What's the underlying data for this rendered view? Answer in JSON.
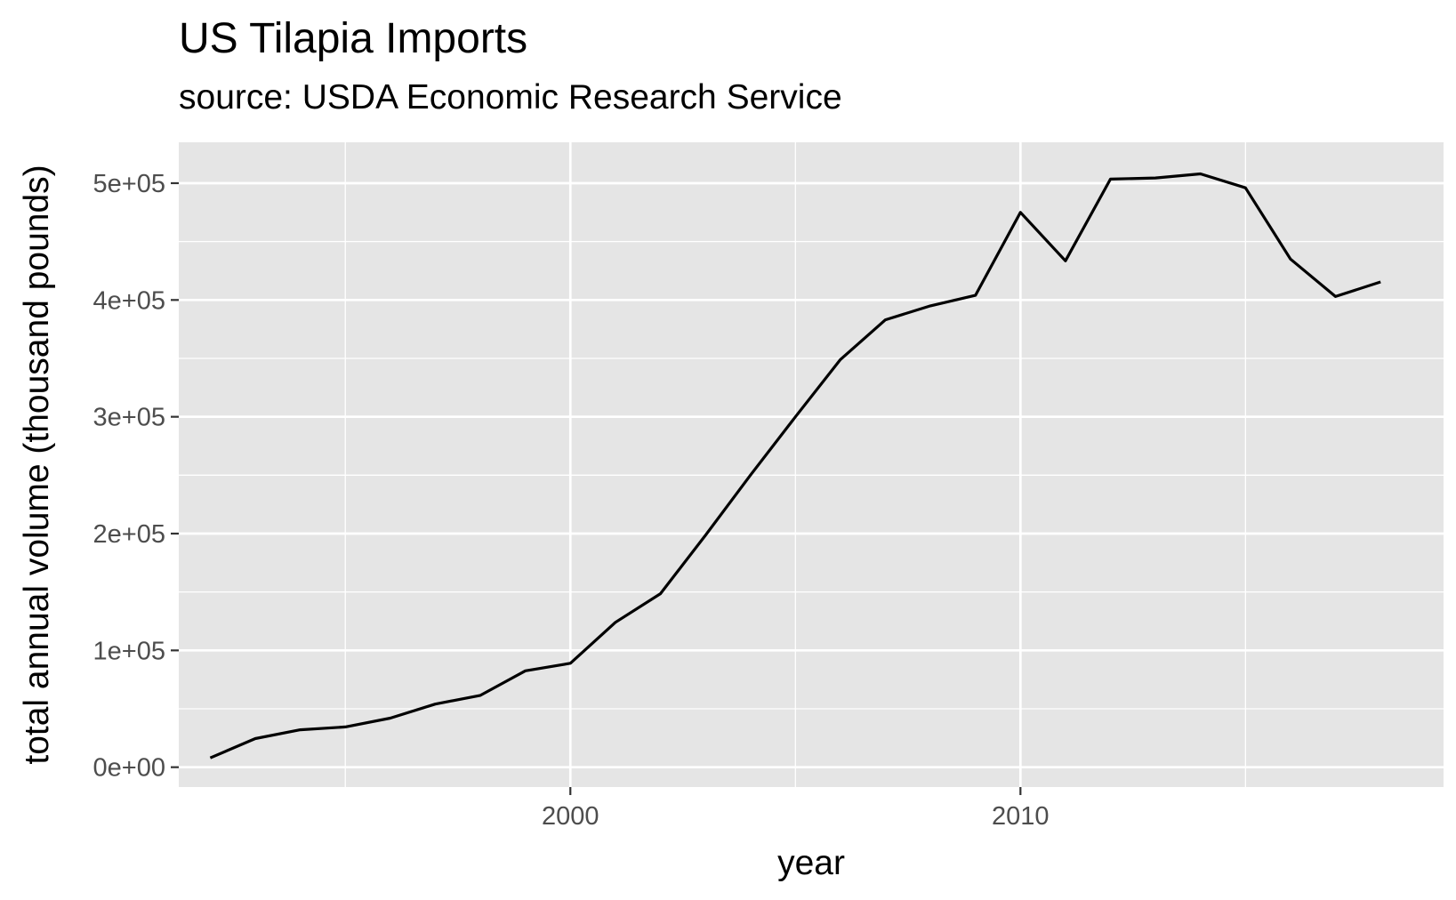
{
  "chart_data": {
    "type": "line",
    "title": "US Tilapia Imports",
    "subtitle": "source: USDA Economic Research Service",
    "xlabel": "year",
    "ylabel": "total annual volume (thousand pounds)",
    "xlim": [
      1991.3,
      2019.4
    ],
    "ylim": [
      -17000,
      535000
    ],
    "x_ticks": [
      2000,
      2010
    ],
    "x_tick_labels": [
      "2000",
      "2010"
    ],
    "x_minor_ticks": [
      1995,
      2005,
      2015
    ],
    "y_ticks": [
      0,
      100000,
      200000,
      300000,
      400000,
      500000
    ],
    "y_tick_labels": [
      "0e+00",
      "1e+05",
      "2e+05",
      "3e+05",
      "4e+05",
      "5e+05"
    ],
    "y_minor_ticks": [
      50000,
      150000,
      250000,
      350000,
      450000
    ],
    "grid": true,
    "legend": "none",
    "panel_background": "#e5e5e5",
    "grid_color": "#ffffff",
    "line_color": "#000000",
    "series": [
      {
        "x": [
          1992,
          1993,
          1994,
          1995,
          1996,
          1997,
          1998,
          1999,
          2000,
          2001,
          2002,
          2003,
          2004,
          2005,
          2006,
          2007,
          2008,
          2009,
          2010,
          2011,
          2012,
          2013,
          2014,
          2015,
          2016,
          2017,
          2018
        ],
        "y": [
          8000,
          24500,
          32000,
          34500,
          42000,
          54000,
          61500,
          82500,
          89000,
          124000,
          148500,
          198500,
          250000,
          300000,
          349000,
          383000,
          395000,
          404000,
          475000,
          433500,
          503500,
          504500,
          508000,
          496000,
          435000,
          403000,
          415500
        ]
      }
    ]
  }
}
